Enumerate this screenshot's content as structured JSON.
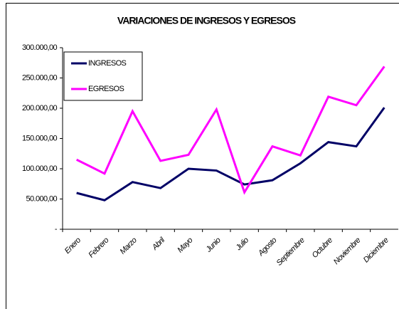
{
  "chart_data": {
    "type": "line",
    "title": "VARIACIONES DE INGRESOS Y EGRESOS",
    "categories": [
      "Enero",
      "Febrero",
      "Marzo",
      "Abril",
      "Mayo",
      "Junio",
      "Julio",
      "Agosto",
      "Septiembre",
      "Octubre",
      "Noviembre",
      "Diciembre"
    ],
    "series": [
      {
        "name": "INGRESOS",
        "color": "#000066",
        "values": [
          60000,
          48000,
          78000,
          68000,
          100000,
          97000,
          74000,
          81000,
          109000,
          144000,
          137000,
          201000
        ]
      },
      {
        "name": "EGRESOS",
        "color": "#ff00ff",
        "values": [
          115000,
          92000,
          195000,
          113000,
          123000,
          198000,
          61000,
          137000,
          122000,
          219000,
          205000,
          269000
        ]
      }
    ],
    "ylim": [
      0,
      300000
    ],
    "yticks": [
      {
        "value": 0,
        "label": "-"
      },
      {
        "value": 50000,
        "label": "50.000,00"
      },
      {
        "value": 100000,
        "label": "100.000,00"
      },
      {
        "value": 150000,
        "label": "150.000,00"
      },
      {
        "value": 200000,
        "label": "200.000,00"
      },
      {
        "value": 250000,
        "label": "250.000,00"
      },
      {
        "value": 300000,
        "label": "300.000,00"
      }
    ],
    "grid": false,
    "legend": "upper-left"
  }
}
